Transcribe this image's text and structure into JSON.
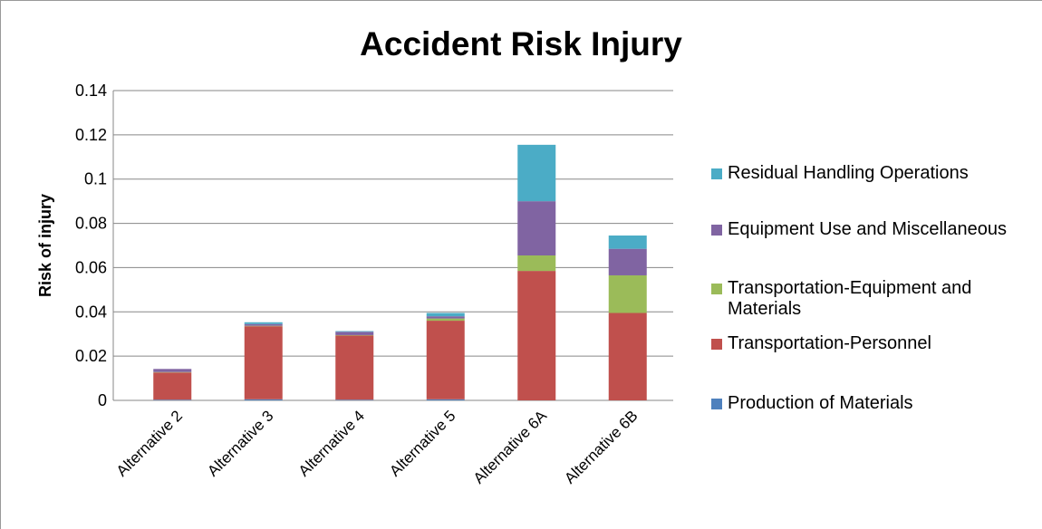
{
  "chart_data": {
    "type": "stacked_bar",
    "title": "Accident Risk Injury",
    "y_label": "Risk of injury",
    "categories": [
      "Alternative 2",
      "Alternative 3",
      "Alternative 4",
      "Alternative 5",
      "Alternative 6A",
      "Alternative 6B"
    ],
    "series": [
      {
        "name": "Production of Materials",
        "color": "#4f81bd",
        "values": [
          0.0003,
          0.0005,
          0.0003,
          0.0005,
          0,
          0
        ]
      },
      {
        "name": "Transportation-Personnel",
        "color": "#c0504d",
        "values": [
          0.0123,
          0.033,
          0.029,
          0.0355,
          0.0585,
          0.0395
        ]
      },
      {
        "name": "Transportation-Equipment and Materials",
        "color": "#9bbb59",
        "values": [
          0.0002,
          0.0002,
          0.0002,
          0.001,
          0.007,
          0.017
        ]
      },
      {
        "name": "Equipment Use and Miscellaneous",
        "color": "#8064a2",
        "values": [
          0.0014,
          0.0008,
          0.0015,
          0.001,
          0.0245,
          0.012
        ]
      },
      {
        "name": "Residual Handling Operations",
        "color": "#4bacc6",
        "values": [
          0,
          0.0008,
          0.0003,
          0.0015,
          0.0255,
          0.006
        ]
      }
    ],
    "ylim": [
      0,
      0.14
    ],
    "yticks": [
      0,
      0.02,
      0.04,
      0.06,
      0.08,
      0.1,
      0.12,
      0.14
    ],
    "grid": true,
    "legend": "right"
  }
}
